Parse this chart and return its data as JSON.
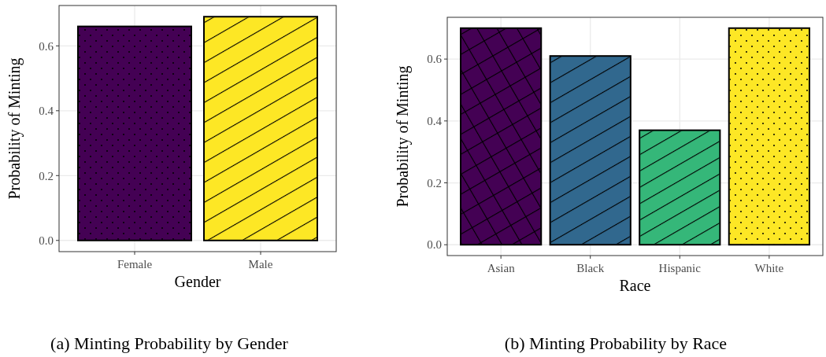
{
  "chart_data": [
    {
      "type": "bar",
      "title": "(a) Minting Probability by Gender",
      "xlabel": "Gender",
      "ylabel": "Probability of Minting",
      "categories": [
        "Female",
        "Male"
      ],
      "values": [
        0.66,
        0.69
      ],
      "colors": [
        "#440154",
        "#fde725"
      ],
      "ylim": [
        -0.0345,
        0.7245
      ],
      "yticks": [
        {
          "value": 0,
          "label": "0.0"
        },
        {
          "value": 0.2,
          "label": "0.2"
        },
        {
          "value": 0.4,
          "label": "0.4"
        },
        {
          "value": 0.6,
          "label": "0.6"
        }
      ],
      "grid": true
    },
    {
      "type": "bar",
      "title": "(b) Minting Probability by Race",
      "xlabel": "Race",
      "ylabel": "Probability of Minting",
      "categories": [
        "Asian",
        "Black",
        "Hispanic",
        "White"
      ],
      "values": [
        0.7,
        0.61,
        0.37,
        0.7
      ],
      "colors": [
        "#440154",
        "#31688e",
        "#35b779",
        "#fde725"
      ],
      "ylim": [
        -0.035,
        0.735
      ],
      "yticks": [
        {
          "value": 0,
          "label": "0.0"
        },
        {
          "value": 0.2,
          "label": "0.2"
        },
        {
          "value": 0.4,
          "label": "0.4"
        },
        {
          "value": 0.6,
          "label": "0.6"
        }
      ],
      "grid": true
    }
  ]
}
